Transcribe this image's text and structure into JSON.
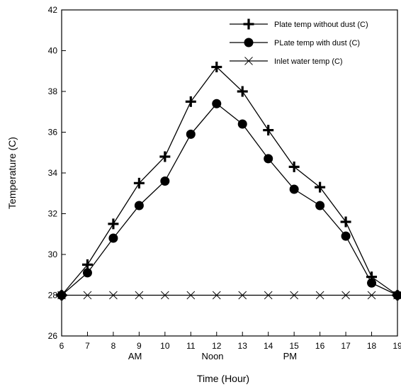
{
  "chart_data": {
    "type": "line",
    "xlabel": "Time (Hour)",
    "ylabel": "Temperature (C)",
    "xlim": [
      6,
      19
    ],
    "ylim": [
      26,
      42
    ],
    "x_ticks": [
      6,
      7,
      8,
      9,
      10,
      11,
      12,
      13,
      14,
      15,
      16,
      17,
      18,
      19
    ],
    "y_ticks": [
      26,
      28,
      30,
      32,
      34,
      36,
      38,
      40,
      42
    ],
    "period_labels": [
      {
        "text": "AM",
        "x": 9.5
      },
      {
        "text": "Noon",
        "x": 12.5
      },
      {
        "text": "PM",
        "x": 15.5
      }
    ],
    "grid": false,
    "legend_position": "top-right",
    "colors": {
      "line": "#000000",
      "background": "#ffffff"
    },
    "x": [
      6,
      7,
      8,
      9,
      10,
      11,
      12,
      13,
      14,
      15,
      16,
      17,
      18,
      19
    ],
    "series": [
      {
        "name": "Plate temp without dust (C)",
        "marker": "plus",
        "values": [
          28.0,
          29.5,
          31.5,
          33.5,
          34.8,
          37.5,
          39.2,
          38.0,
          36.1,
          34.3,
          33.3,
          31.6,
          28.9,
          28.0
        ]
      },
      {
        "name": "PLate temp with dust (C)",
        "marker": "circle",
        "values": [
          28.0,
          29.1,
          30.8,
          32.4,
          33.6,
          35.9,
          37.4,
          36.4,
          34.7,
          33.2,
          32.4,
          30.9,
          28.6,
          28.0
        ]
      },
      {
        "name": "Inlet water temp (C)",
        "marker": "cross",
        "values": [
          28,
          28,
          28,
          28,
          28,
          28,
          28,
          28,
          28,
          28,
          28,
          28,
          28,
          28
        ]
      }
    ]
  }
}
